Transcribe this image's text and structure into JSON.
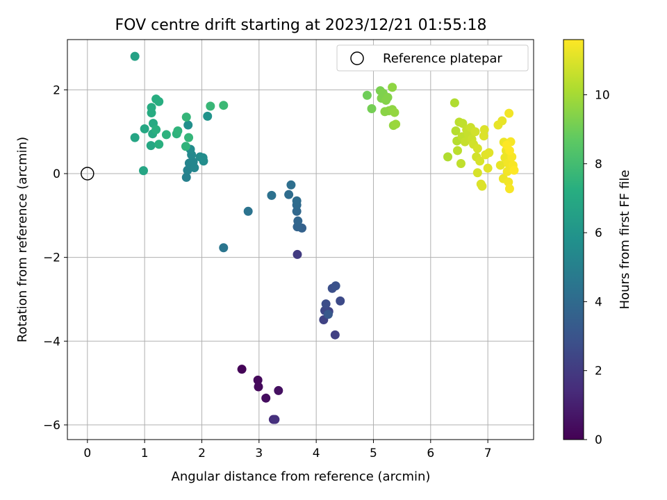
{
  "chart_data": {
    "type": "scatter",
    "title": "FOV centre drift starting at 2023/12/21 01:55:18",
    "xlabel": "Angular distance from reference (arcmin)",
    "ylabel": "Rotation from reference (arcmin)",
    "xlim": [
      -0.35,
      7.8
    ],
    "ylim": [
      -6.35,
      3.2
    ],
    "xticks": [
      0,
      1,
      2,
      3,
      4,
      5,
      6,
      7
    ],
    "yticks": [
      -6,
      -4,
      -2,
      0,
      2
    ],
    "grid": true,
    "legend": {
      "position": "top-right",
      "entries": [
        "Reference platepar"
      ]
    },
    "reference_point": {
      "x": 0,
      "y": 0,
      "label": "Reference platepar"
    },
    "colorbar": {
      "label": "Hours from first FF file",
      "min": 0,
      "max": 11.6,
      "ticks": [
        0,
        2,
        4,
        6,
        8,
        10
      ],
      "colormap": "viridis"
    },
    "points": [
      {
        "x": 2.7,
        "y": -4.67,
        "c": 0.1
      },
      {
        "x": 2.98,
        "y": -4.93,
        "c": 0.25
      },
      {
        "x": 2.99,
        "y": -5.09,
        "c": 0.3
      },
      {
        "x": 3.12,
        "y": -5.36,
        "c": 0.4
      },
      {
        "x": 3.34,
        "y": -5.18,
        "c": 0.5
      },
      {
        "x": 3.25,
        "y": -5.87,
        "c": 1.5
      },
      {
        "x": 3.28,
        "y": -5.87,
        "c": 1.6
      },
      {
        "x": 3.67,
        "y": -1.93,
        "c": 2.0
      },
      {
        "x": 4.33,
        "y": -3.85,
        "c": 2.2
      },
      {
        "x": 4.13,
        "y": -3.49,
        "c": 2.3
      },
      {
        "x": 4.22,
        "y": -3.29,
        "c": 2.4
      },
      {
        "x": 4.15,
        "y": -3.27,
        "c": 2.5
      },
      {
        "x": 4.42,
        "y": -3.04,
        "c": 2.6
      },
      {
        "x": 4.17,
        "y": -3.11,
        "c": 2.7
      },
      {
        "x": 4.28,
        "y": -2.74,
        "c": 2.8
      },
      {
        "x": 4.34,
        "y": -2.68,
        "c": 2.9
      },
      {
        "x": 4.21,
        "y": -3.36,
        "c": 3.2
      },
      {
        "x": 3.75,
        "y": -1.3,
        "c": 3.6
      },
      {
        "x": 3.67,
        "y": -1.27,
        "c": 3.7
      },
      {
        "x": 3.68,
        "y": -1.13,
        "c": 3.8
      },
      {
        "x": 3.66,
        "y": -0.9,
        "c": 3.9
      },
      {
        "x": 3.66,
        "y": -0.75,
        "c": 4.0
      },
      {
        "x": 3.66,
        "y": -0.65,
        "c": 4.1
      },
      {
        "x": 3.52,
        "y": -0.5,
        "c": 4.1
      },
      {
        "x": 3.56,
        "y": -0.27,
        "c": 4.2
      },
      {
        "x": 3.22,
        "y": -0.52,
        "c": 4.3
      },
      {
        "x": 2.81,
        "y": -0.9,
        "c": 4.4
      },
      {
        "x": 2.38,
        "y": -1.77,
        "c": 4.5
      },
      {
        "x": 1.73,
        "y": -0.09,
        "c": 5.0
      },
      {
        "x": 1.75,
        "y": 0.08,
        "c": 5.1
      },
      {
        "x": 1.78,
        "y": 0.25,
        "c": 5.2
      },
      {
        "x": 1.87,
        "y": 0.14,
        "c": 5.3
      },
      {
        "x": 1.85,
        "y": 0.28,
        "c": 5.3
      },
      {
        "x": 1.82,
        "y": 0.45,
        "c": 5.4
      },
      {
        "x": 1.8,
        "y": 0.58,
        "c": 5.5
      },
      {
        "x": 1.97,
        "y": 0.4,
        "c": 5.5
      },
      {
        "x": 2.02,
        "y": 0.38,
        "c": 5.6
      },
      {
        "x": 2.03,
        "y": 0.3,
        "c": 5.6
      },
      {
        "x": 1.76,
        "y": 1.16,
        "c": 5.7
      },
      {
        "x": 2.1,
        "y": 1.37,
        "c": 5.9
      },
      {
        "x": 0.83,
        "y": 2.8,
        "c": 6.6
      },
      {
        "x": 0.83,
        "y": 0.86,
        "c": 6.8
      },
      {
        "x": 0.98,
        "y": 0.07,
        "c": 6.8
      },
      {
        "x": 1.0,
        "y": 1.07,
        "c": 6.9
      },
      {
        "x": 1.11,
        "y": 0.67,
        "c": 6.9
      },
      {
        "x": 1.14,
        "y": 0.95,
        "c": 7.0
      },
      {
        "x": 1.15,
        "y": 1.2,
        "c": 7.0
      },
      {
        "x": 1.12,
        "y": 1.45,
        "c": 7.1
      },
      {
        "x": 1.12,
        "y": 1.58,
        "c": 7.1
      },
      {
        "x": 1.2,
        "y": 1.78,
        "c": 7.2
      },
      {
        "x": 1.25,
        "y": 1.72,
        "c": 7.2
      },
      {
        "x": 1.2,
        "y": 1.05,
        "c": 7.3
      },
      {
        "x": 1.25,
        "y": 0.7,
        "c": 7.3
      },
      {
        "x": 1.38,
        "y": 0.93,
        "c": 7.4
      },
      {
        "x": 1.56,
        "y": 0.95,
        "c": 7.4
      },
      {
        "x": 1.58,
        "y": 1.02,
        "c": 7.5
      },
      {
        "x": 1.72,
        "y": 0.65,
        "c": 7.5
      },
      {
        "x": 1.73,
        "y": 1.35,
        "c": 7.6
      },
      {
        "x": 1.77,
        "y": 0.86,
        "c": 7.6
      },
      {
        "x": 2.15,
        "y": 1.61,
        "c": 7.7
      },
      {
        "x": 2.38,
        "y": 1.63,
        "c": 7.8
      },
      {
        "x": 4.89,
        "y": 1.87,
        "c": 9.0
      },
      {
        "x": 4.97,
        "y": 1.55,
        "c": 9.1
      },
      {
        "x": 5.12,
        "y": 1.98,
        "c": 9.2
      },
      {
        "x": 5.14,
        "y": 1.8,
        "c": 9.3
      },
      {
        "x": 5.17,
        "y": 1.92,
        "c": 9.3
      },
      {
        "x": 5.22,
        "y": 1.75,
        "c": 9.4
      },
      {
        "x": 5.25,
        "y": 1.82,
        "c": 9.4
      },
      {
        "x": 5.2,
        "y": 1.48,
        "c": 9.5
      },
      {
        "x": 5.27,
        "y": 1.5,
        "c": 9.5
      },
      {
        "x": 5.33,
        "y": 2.06,
        "c": 9.6
      },
      {
        "x": 5.33,
        "y": 1.53,
        "c": 9.6
      },
      {
        "x": 5.37,
        "y": 1.46,
        "c": 9.7
      },
      {
        "x": 5.35,
        "y": 1.15,
        "c": 9.7
      },
      {
        "x": 5.39,
        "y": 1.18,
        "c": 9.8
      },
      {
        "x": 6.3,
        "y": 0.4,
        "c": 10.2
      },
      {
        "x": 6.42,
        "y": 1.69,
        "c": 10.2
      },
      {
        "x": 6.44,
        "y": 1.02,
        "c": 10.3
      },
      {
        "x": 6.46,
        "y": 0.78,
        "c": 10.3
      },
      {
        "x": 6.47,
        "y": 0.55,
        "c": 10.4
      },
      {
        "x": 6.5,
        "y": 1.23,
        "c": 10.4
      },
      {
        "x": 6.53,
        "y": 0.24,
        "c": 10.5
      },
      {
        "x": 6.55,
        "y": 0.88,
        "c": 10.5
      },
      {
        "x": 6.56,
        "y": 1.2,
        "c": 10.5
      },
      {
        "x": 6.6,
        "y": 0.76,
        "c": 10.6
      },
      {
        "x": 6.63,
        "y": 1.05,
        "c": 10.6
      },
      {
        "x": 6.66,
        "y": 0.95,
        "c": 10.6
      },
      {
        "x": 6.7,
        "y": 1.1,
        "c": 10.7
      },
      {
        "x": 6.72,
        "y": 0.82,
        "c": 10.7
      },
      {
        "x": 6.75,
        "y": 0.7,
        "c": 10.8
      },
      {
        "x": 6.78,
        "y": 1.0,
        "c": 10.8
      },
      {
        "x": 6.8,
        "y": 0.4,
        "c": 10.8
      },
      {
        "x": 6.82,
        "y": 0.6,
        "c": 10.9
      },
      {
        "x": 6.82,
        "y": 0.02,
        "c": 10.9
      },
      {
        "x": 6.86,
        "y": 0.3,
        "c": 10.9
      },
      {
        "x": 6.88,
        "y": -0.25,
        "c": 11.0
      },
      {
        "x": 6.9,
        "y": -0.3,
        "c": 11.0
      },
      {
        "x": 6.93,
        "y": 0.9,
        "c": 11.0
      },
      {
        "x": 6.94,
        "y": 1.05,
        "c": 11.0
      },
      {
        "x": 6.96,
        "y": 0.45,
        "c": 11.1
      },
      {
        "x": 7.0,
        "y": 0.13,
        "c": 11.1
      },
      {
        "x": 7.02,
        "y": 0.5,
        "c": 11.1
      },
      {
        "x": 7.18,
        "y": 1.16,
        "c": 11.2
      },
      {
        "x": 7.22,
        "y": 0.2,
        "c": 11.2
      },
      {
        "x": 7.25,
        "y": 1.26,
        "c": 11.2
      },
      {
        "x": 7.27,
        "y": -0.12,
        "c": 11.3
      },
      {
        "x": 7.28,
        "y": 0.75,
        "c": 11.3
      },
      {
        "x": 7.3,
        "y": 0.38,
        "c": 11.3
      },
      {
        "x": 7.32,
        "y": 0.55,
        "c": 11.3
      },
      {
        "x": 7.34,
        "y": 0.05,
        "c": 11.4
      },
      {
        "x": 7.35,
        "y": 0.25,
        "c": 11.4
      },
      {
        "x": 7.36,
        "y": -0.2,
        "c": 11.4
      },
      {
        "x": 7.37,
        "y": 1.44,
        "c": 11.4
      },
      {
        "x": 7.38,
        "y": -0.36,
        "c": 11.5
      },
      {
        "x": 7.4,
        "y": 0.76,
        "c": 11.5
      },
      {
        "x": 7.42,
        "y": 0.4,
        "c": 11.5
      },
      {
        "x": 7.44,
        "y": 0.2,
        "c": 11.5
      },
      {
        "x": 7.46,
        "y": 0.08,
        "c": 11.6
      },
      {
        "x": 7.38,
        "y": 0.55,
        "c": 11.6
      },
      {
        "x": 7.33,
        "y": 0.68,
        "c": 11.6
      }
    ]
  }
}
